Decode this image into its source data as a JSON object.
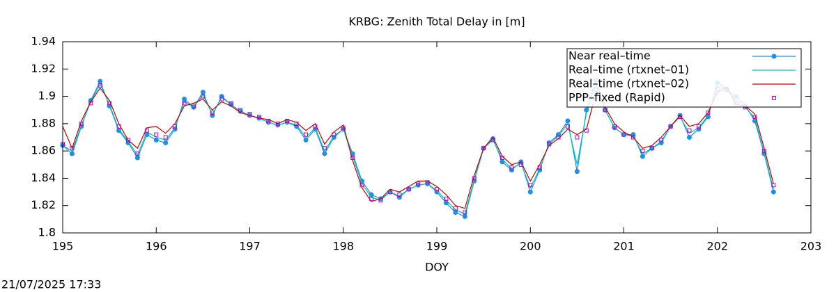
{
  "chart_data": {
    "type": "line",
    "title": "KRBG: Zenith Total Delay in [m]",
    "x_label": "DOY",
    "timestamp": "21/07/2025 17:33",
    "xlim": [
      195,
      203
    ],
    "xticks": [
      195,
      196,
      197,
      198,
      199,
      200,
      201,
      202,
      203
    ],
    "ylim": [
      1.8,
      1.94
    ],
    "yticks": [
      1.8,
      1.82,
      1.84,
      1.86,
      1.88,
      1.9,
      1.92,
      1.94
    ],
    "grid": false,
    "legend": "top right",
    "x": [
      195,
      195.1,
      195.2,
      195.3,
      195.4,
      195.5,
      195.6,
      195.7,
      195.8,
      195.9,
      196,
      196.1,
      196.2,
      196.3,
      196.4,
      196.5,
      196.6,
      196.7,
      196.8,
      196.9,
      197,
      197.1,
      197.2,
      197.3,
      197.4,
      197.5,
      197.6,
      197.7,
      197.8,
      197.9,
      198,
      198.1,
      198.2,
      198.3,
      198.4,
      198.5,
      198.6,
      198.7,
      198.8,
      198.9,
      199,
      199.1,
      199.2,
      199.3,
      199.4,
      199.5,
      199.6,
      199.7,
      199.8,
      199.9,
      200,
      200.1,
      200.2,
      200.3,
      200.4,
      200.5,
      200.6,
      200.7,
      200.8,
      200.9,
      201,
      201.1,
      201.2,
      201.3,
      201.4,
      201.5,
      201.6,
      201.7,
      201.8,
      201.9,
      202,
      202.1,
      202.2,
      202.3,
      202.4,
      202.5,
      202.6
    ],
    "series": [
      {
        "name": "Near real–time",
        "color": "#1e8fe8",
        "style": "linespoints",
        "values": [
          1.864,
          1.858,
          1.878,
          1.897,
          1.911,
          1.893,
          1.875,
          1.866,
          1.855,
          1.872,
          1.868,
          1.866,
          1.876,
          1.898,
          1.892,
          1.903,
          1.886,
          1.9,
          1.894,
          1.889,
          1.886,
          1.884,
          1.881,
          1.879,
          1.881,
          1.878,
          1.868,
          1.876,
          1.858,
          1.87,
          1.876,
          1.858,
          1.838,
          1.828,
          1.825,
          1.83,
          1.826,
          1.832,
          1.835,
          1.836,
          1.83,
          1.822,
          1.815,
          1.812,
          1.838,
          1.862,
          1.869,
          1.852,
          1.846,
          1.852,
          1.83,
          1.846,
          1.866,
          1.872,
          1.882,
          1.845,
          1.89,
          1.912,
          1.89,
          1.877,
          1.872,
          1.872,
          1.856,
          1.862,
          1.866,
          1.878,
          1.886,
          1.87,
          1.876,
          1.885,
          1.91,
          1.905,
          1.9,
          1.893,
          1.882,
          1.858,
          1.83
        ]
      },
      {
        "name": "Real–time (rtxnet–01)",
        "color": "#00c0c0",
        "style": "lines",
        "values": [
          1.864,
          1.86,
          1.879,
          1.896,
          1.909,
          1.894,
          1.876,
          1.867,
          1.857,
          1.874,
          1.87,
          1.868,
          1.877,
          1.896,
          1.892,
          1.901,
          1.887,
          1.899,
          1.894,
          1.889,
          1.886,
          1.884,
          1.881,
          1.879,
          1.881,
          1.879,
          1.87,
          1.877,
          1.86,
          1.871,
          1.876,
          1.856,
          1.836,
          1.826,
          1.824,
          1.83,
          1.827,
          1.832,
          1.835,
          1.836,
          1.831,
          1.824,
          1.817,
          1.814,
          1.839,
          1.862,
          1.868,
          1.854,
          1.847,
          1.851,
          1.833,
          1.847,
          1.865,
          1.871,
          1.88,
          1.85,
          1.888,
          1.908,
          1.89,
          1.877,
          1.872,
          1.871,
          1.858,
          1.862,
          1.867,
          1.878,
          1.885,
          1.873,
          1.877,
          1.886,
          1.907,
          1.905,
          1.897,
          1.892,
          1.884,
          1.859,
          1.832
        ]
      },
      {
        "name": "Real–time (rtxnet–02)",
        "color": "#c00000",
        "style": "lines",
        "values": [
          1.878,
          1.862,
          1.882,
          1.896,
          1.906,
          1.897,
          1.88,
          1.868,
          1.862,
          1.877,
          1.878,
          1.873,
          1.88,
          1.893,
          1.895,
          1.898,
          1.89,
          1.896,
          1.893,
          1.888,
          1.886,
          1.884,
          1.883,
          1.88,
          1.883,
          1.881,
          1.875,
          1.88,
          1.865,
          1.874,
          1.879,
          1.853,
          1.833,
          1.823,
          1.825,
          1.832,
          1.83,
          1.834,
          1.838,
          1.838,
          1.834,
          1.828,
          1.82,
          1.818,
          1.842,
          1.862,
          1.87,
          1.856,
          1.85,
          1.852,
          1.838,
          1.85,
          1.864,
          1.869,
          1.876,
          1.872,
          1.876,
          1.902,
          1.892,
          1.88,
          1.874,
          1.87,
          1.862,
          1.864,
          1.87,
          1.878,
          1.886,
          1.878,
          1.88,
          1.888,
          1.903,
          1.907,
          1.894,
          1.893,
          1.887,
          1.862,
          1.836
        ]
      },
      {
        "name": "PPP–fixed (Rapid)",
        "color": "#c000c0",
        "style": "points",
        "values": [
          1.865,
          1.862,
          1.88,
          1.895,
          1.908,
          1.895,
          1.878,
          1.868,
          1.858,
          1.875,
          1.872,
          1.87,
          1.878,
          1.895,
          1.893,
          1.9,
          1.888,
          1.898,
          1.895,
          1.89,
          1.887,
          1.885,
          1.882,
          1.88,
          1.882,
          1.88,
          1.872,
          1.878,
          1.862,
          1.872,
          1.877,
          1.855,
          1.835,
          1.825,
          1.824,
          1.83,
          1.828,
          1.832,
          1.836,
          1.837,
          1.832,
          1.825,
          1.818,
          1.815,
          1.84,
          1.862,
          1.868,
          1.855,
          1.848,
          1.85,
          1.835,
          1.848,
          1.865,
          1.87,
          1.878,
          1.87,
          1.875,
          1.905,
          1.89,
          1.878,
          1.872,
          1.87,
          1.86,
          1.862,
          1.868,
          1.878,
          1.885,
          1.875,
          1.878,
          1.888,
          1.905,
          1.905,
          1.895,
          1.892,
          1.885,
          1.86,
          1.835
        ]
      }
    ]
  }
}
